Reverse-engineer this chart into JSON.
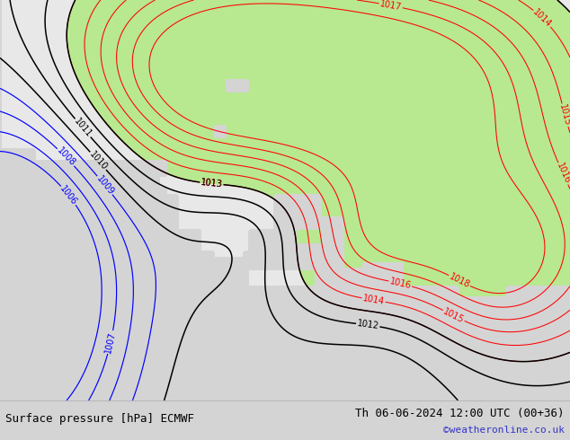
{
  "title_left": "Surface pressure [hPa] ECMWF",
  "title_right": "Th 06-06-2024 12:00 UTC (00+36)",
  "copyright": "©weatheronline.co.uk",
  "bg_color": "#d4d4d4",
  "land_color": "#e8e8e8",
  "sea_color": "#d4d4d4",
  "green_fill_color": "#b8e890",
  "label_fontsize": 7,
  "footer_fontsize": 9,
  "copyright_color": "#3333cc",
  "fig_width": 6.34,
  "fig_height": 4.9,
  "dpi": 100
}
